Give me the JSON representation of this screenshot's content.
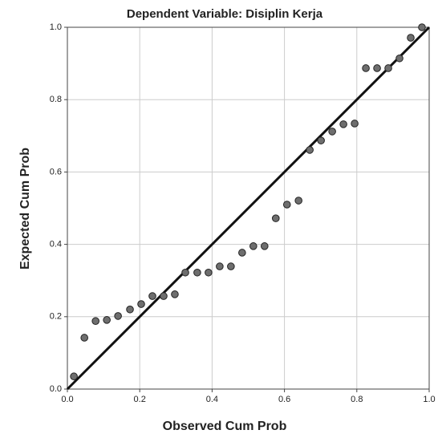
{
  "chart_data": {
    "type": "scatter",
    "title": "Dependent Variable: Disiplin Kerja",
    "x_label": "Observed Cum Prob",
    "y_label": "Expected Cum Prob",
    "color": "#6e6e6e",
    "grid": true,
    "xlim": [
      0,
      1
    ],
    "ylim": [
      0,
      1
    ],
    "xticks": [
      {
        "value": 0,
        "label": "0.0"
      },
      {
        "value": 0.2,
        "label": "0.2"
      },
      {
        "value": 0.4,
        "label": "0.4"
      },
      {
        "value": 0.6,
        "label": "0.6"
      },
      {
        "value": 0.8,
        "label": "0.8"
      },
      {
        "value": 1,
        "label": "1.0"
      }
    ],
    "yticks": [
      {
        "value": 0,
        "label": "0.0"
      },
      {
        "value": 0.2,
        "label": "0.2"
      },
      {
        "value": 0.4,
        "label": "0.4"
      },
      {
        "value": 0.6,
        "label": "0.6"
      },
      {
        "value": 0.8,
        "label": "0.8"
      },
      {
        "value": 1,
        "label": "1.0"
      }
    ],
    "x": [
      0.018,
      0.047,
      0.078,
      0.109,
      0.14,
      0.173,
      0.204,
      0.235,
      0.266,
      0.297,
      0.326,
      0.359,
      0.39,
      0.421,
      0.452,
      0.483,
      0.514,
      0.545,
      0.576,
      0.607,
      0.639,
      0.67,
      0.701,
      0.732,
      0.763,
      0.794,
      0.825,
      0.856,
      0.887,
      0.918,
      0.949,
      0.98
    ],
    "values": [
      0.035,
      0.142,
      0.188,
      0.191,
      0.202,
      0.22,
      0.235,
      0.257,
      0.257,
      0.262,
      0.322,
      0.322,
      0.322,
      0.339,
      0.339,
      0.377,
      0.395,
      0.395,
      0.472,
      0.51,
      0.521,
      0.661,
      0.687,
      0.712,
      0.732,
      0.734,
      0.887,
      0.887,
      0.887,
      0.914,
      0.971,
      1.0
    ]
  }
}
